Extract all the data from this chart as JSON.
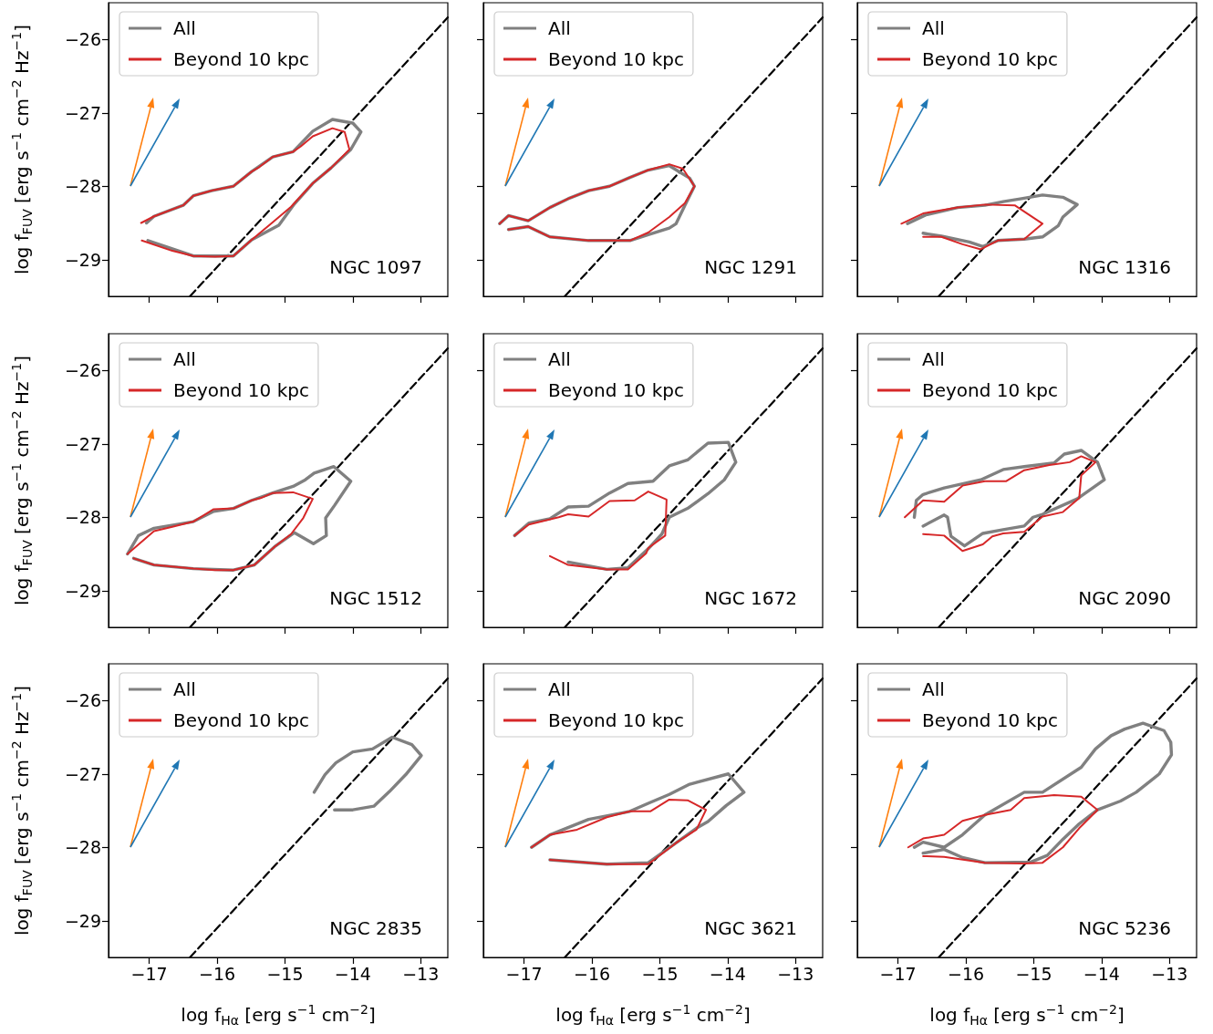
{
  "chart_data": [
    {
      "type": "line",
      "xlim": [
        -17.6,
        -12.6
      ],
      "ylim": [
        -29.5,
        -25.5
      ],
      "xticks": [
        -17,
        -16,
        -15,
        -14,
        -13
      ],
      "yticks": [
        -29,
        -28,
        -27,
        -26
      ],
      "tick_labels": "y",
      "ylabel": "log f$_{FUV}$ [erg s$^{−1}$ cm$^{−2}$ Hz$^{−1}$]",
      "legend": "top left",
      "annotations": [
        "NGC 1097"
      ],
      "series": [
        {
          "name": "All",
          "color": "#808080",
          "x": [
            -17.04,
            -16.93,
            -16.5,
            -16.35,
            -16.08,
            -15.76,
            -15.49,
            -15.18,
            -14.88,
            -14.59,
            -14.3,
            -14.0,
            -13.88,
            -14.03,
            -14.32,
            -14.59,
            -14.86,
            -15.09,
            -15.49,
            -15.76,
            -16.35,
            -17.02
          ],
          "values": [
            -28.5,
            -28.41,
            -28.26,
            -28.13,
            -28.06,
            -28.0,
            -27.8,
            -27.6,
            -27.53,
            -27.25,
            -27.09,
            -27.14,
            -27.26,
            -27.5,
            -27.75,
            -27.96,
            -28.24,
            -28.53,
            -28.73,
            -28.95,
            -28.95,
            -28.74
          ]
        },
        {
          "name": "Beyond 10 kpc",
          "color": "#d62728",
          "x": [
            -17.12,
            -16.93,
            -16.5,
            -16.35,
            -16.08,
            -15.76,
            -15.49,
            -15.38,
            -15.18,
            -14.88,
            -14.77,
            -14.59,
            -14.3,
            -14.12,
            -14.05,
            -14.32,
            -14.59,
            -14.91,
            -15.18,
            -15.49,
            -15.76,
            -16.03,
            -16.35,
            -16.66,
            -17.11
          ],
          "values": [
            -28.5,
            -28.41,
            -28.26,
            -28.13,
            -28.06,
            -28.0,
            -27.8,
            -27.74,
            -27.6,
            -27.53,
            -27.46,
            -27.32,
            -27.21,
            -27.26,
            -27.5,
            -27.75,
            -27.96,
            -28.28,
            -28.49,
            -28.73,
            -28.95,
            -28.96,
            -28.95,
            -28.88,
            -28.74
          ]
        },
        {
          "color": "#000000",
          "line_style": "dashed",
          "x": [
            -16.4,
            -12.6
          ],
          "values": [
            -29.5,
            -25.7
          ]
        }
      ]
    },
    {
      "type": "line",
      "xlim": [
        -17.6,
        -12.6
      ],
      "ylim": [
        -29.5,
        -25.5
      ],
      "xticks": [
        -17,
        -16,
        -15,
        -14,
        -13
      ],
      "yticks": [
        -29,
        -28,
        -27,
        -26
      ],
      "tick_labels": false,
      "legend": "top left",
      "annotations": [
        "NGC 1291"
      ],
      "series": [
        {
          "name": "All",
          "color": "#808080",
          "x": [
            -17.36,
            -17.23,
            -16.94,
            -16.62,
            -16.35,
            -16.05,
            -15.74,
            -15.44,
            -15.17,
            -14.86,
            -14.56,
            -14.49,
            -14.63,
            -14.76,
            -14.86,
            -15.17,
            -15.44,
            -16.05,
            -16.62,
            -16.94,
            -17.23
          ],
          "values": [
            -28.51,
            -28.4,
            -28.47,
            -28.29,
            -28.17,
            -28.06,
            -28.0,
            -27.88,
            -27.78,
            -27.72,
            -27.89,
            -28.0,
            -28.26,
            -28.51,
            -28.57,
            -28.66,
            -28.74,
            -28.74,
            -28.69,
            -28.55,
            -28.59
          ]
        },
        {
          "name": "Beyond 10 kpc",
          "color": "#d62728",
          "x": [
            -17.36,
            -17.23,
            -16.94,
            -16.62,
            -16.35,
            -16.05,
            -15.74,
            -15.44,
            -15.17,
            -14.86,
            -14.66,
            -14.49,
            -14.63,
            -14.86,
            -15.17,
            -15.44,
            -16.05,
            -16.62,
            -16.94,
            -17.23
          ],
          "values": [
            -28.51,
            -28.4,
            -28.47,
            -28.29,
            -28.17,
            -28.06,
            -28.0,
            -27.88,
            -27.78,
            -27.7,
            -27.76,
            -28.0,
            -28.23,
            -28.42,
            -28.63,
            -28.74,
            -28.74,
            -28.69,
            -28.55,
            -28.59
          ]
        },
        {
          "color": "#000000",
          "line_style": "dashed",
          "x": [
            -16.4,
            -12.6
          ],
          "values": [
            -29.5,
            -25.7
          ]
        }
      ]
    },
    {
      "type": "line",
      "xlim": [
        -17.6,
        -12.6
      ],
      "ylim": [
        -29.5,
        -25.5
      ],
      "xticks": [
        -17,
        -16,
        -15,
        -14,
        -13
      ],
      "yticks": [
        -29,
        -28,
        -27,
        -26
      ],
      "tick_labels": false,
      "legend": "top left",
      "annotations": [
        "NGC 1316"
      ],
      "series": [
        {
          "name": "All",
          "color": "#808080",
          "x": [
            -16.86,
            -16.59,
            -16.12,
            -15.72,
            -15.45,
            -15.18,
            -14.87,
            -14.57,
            -14.36,
            -14.57,
            -14.64,
            -14.87,
            -15.14,
            -15.53,
            -15.75,
            -15.95,
            -16.36,
            -16.63
          ],
          "values": [
            -28.51,
            -28.39,
            -28.29,
            -28.26,
            -28.21,
            -28.17,
            -28.12,
            -28.15,
            -28.25,
            -28.42,
            -28.54,
            -28.69,
            -28.72,
            -28.74,
            -28.82,
            -28.76,
            -28.68,
            -28.64
          ]
        },
        {
          "name": "Beyond 10 kpc",
          "color": "#d62728",
          "x": [
            -16.95,
            -16.63,
            -16.12,
            -15.72,
            -15.28,
            -14.87,
            -15.14,
            -15.53,
            -15.78,
            -16.05,
            -16.36,
            -16.63
          ],
          "values": [
            -28.51,
            -28.37,
            -28.29,
            -28.25,
            -28.26,
            -28.51,
            -28.72,
            -28.74,
            -28.86,
            -28.79,
            -28.69,
            -28.69
          ]
        },
        {
          "color": "#000000",
          "line_style": "dashed",
          "x": [
            -16.4,
            -12.6
          ],
          "values": [
            -29.5,
            -25.7
          ]
        }
      ]
    },
    {
      "type": "line",
      "xlim": [
        -17.6,
        -12.6
      ],
      "ylim": [
        -29.5,
        -25.5
      ],
      "xticks": [
        -17,
        -16,
        -15,
        -14,
        -13
      ],
      "yticks": [
        -29,
        -28,
        -27,
        -26
      ],
      "tick_labels": "y",
      "ylabel": "log f$_{FUV}$ [erg s$^{−1}$ cm$^{−2}$ Hz$^{−1}$]",
      "legend": "top left",
      "annotations": [
        "NGC 1512"
      ],
      "series": [
        {
          "name": "All",
          "color": "#808080",
          "x": [
            -17.32,
            -17.16,
            -16.93,
            -16.35,
            -16.05,
            -15.76,
            -15.49,
            -15.18,
            -14.88,
            -14.7,
            -14.57,
            -14.28,
            -14.03,
            -14.27,
            -14.4,
            -14.39,
            -14.58,
            -14.86,
            -15.15,
            -15.45,
            -15.76,
            -16.35,
            -16.93,
            -17.23
          ],
          "values": [
            -28.5,
            -28.25,
            -28.15,
            -28.06,
            -27.92,
            -27.88,
            -27.77,
            -27.67,
            -27.58,
            -27.49,
            -27.4,
            -27.31,
            -27.51,
            -27.84,
            -28.01,
            -28.25,
            -28.36,
            -28.21,
            -28.4,
            -28.65,
            -28.72,
            -28.7,
            -28.65,
            -28.56
          ]
        },
        {
          "name": "Beyond 10 kpc",
          "color": "#d62728",
          "x": [
            -17.32,
            -16.93,
            -16.66,
            -16.35,
            -16.05,
            -15.76,
            -15.49,
            -15.36,
            -15.18,
            -14.88,
            -14.59,
            -14.73,
            -14.91,
            -15.15,
            -15.45,
            -15.76,
            -16.03,
            -16.35,
            -16.93,
            -17.23
          ],
          "values": [
            -28.5,
            -28.19,
            -28.13,
            -28.06,
            -27.89,
            -27.88,
            -27.77,
            -27.74,
            -27.67,
            -27.66,
            -27.75,
            -28.01,
            -28.23,
            -28.4,
            -28.65,
            -28.72,
            -28.72,
            -28.7,
            -28.65,
            -28.56
          ]
        },
        {
          "color": "#000000",
          "line_style": "dashed",
          "x": [
            -16.4,
            -12.6
          ],
          "values": [
            -29.5,
            -25.7
          ]
        }
      ]
    },
    {
      "type": "line",
      "xlim": [
        -17.6,
        -12.6
      ],
      "ylim": [
        -29.5,
        -25.5
      ],
      "xticks": [
        -17,
        -16,
        -15,
        -14,
        -13
      ],
      "yticks": [
        -29,
        -28,
        -27,
        -26
      ],
      "tick_labels": false,
      "legend": "top left",
      "annotations": [
        "NGC 1672"
      ],
      "series": [
        {
          "name": "All",
          "color": "#808080",
          "x": [
            -17.14,
            -16.93,
            -16.62,
            -16.35,
            -16.05,
            -15.74,
            -15.47,
            -15.1,
            -14.86,
            -14.59,
            -14.29,
            -13.99,
            -13.88,
            -14.05,
            -14.29,
            -14.59,
            -14.86,
            -14.97,
            -15.17,
            -15.47,
            -15.78,
            -16.35
          ],
          "values": [
            -28.25,
            -28.08,
            -28.02,
            -27.86,
            -27.85,
            -27.67,
            -27.54,
            -27.51,
            -27.3,
            -27.22,
            -26.99,
            -26.98,
            -27.25,
            -27.49,
            -27.68,
            -27.88,
            -28.0,
            -28.23,
            -28.43,
            -28.69,
            -28.71,
            -28.61
          ]
        },
        {
          "name": "Beyond 10 kpc",
          "color": "#d62728",
          "x": [
            -17.14,
            -16.93,
            -16.49,
            -16.35,
            -16.05,
            -15.74,
            -15.37,
            -15.17,
            -14.9,
            -14.92,
            -15.17,
            -15.2,
            -15.47,
            -15.78,
            -16.35,
            -16.62
          ],
          "values": [
            -28.25,
            -28.1,
            -28.0,
            -27.96,
            -27.99,
            -27.78,
            -27.77,
            -27.65,
            -27.76,
            -28.25,
            -28.42,
            -28.49,
            -28.71,
            -28.71,
            -28.65,
            -28.53
          ]
        },
        {
          "color": "#000000",
          "line_style": "dashed",
          "x": [
            -16.4,
            -12.6
          ],
          "values": [
            -29.5,
            -25.7
          ]
        }
      ]
    },
    {
      "type": "line",
      "xlim": [
        -17.6,
        -12.6
      ],
      "ylim": [
        -29.5,
        -25.5
      ],
      "xticks": [
        -17,
        -16,
        -15,
        -14,
        -13
      ],
      "yticks": [
        -29,
        -28,
        -27,
        -26
      ],
      "tick_labels": false,
      "legend": "top left",
      "annotations": [
        "NGC 2090"
      ],
      "series": [
        {
          "name": "All",
          "color": "#808080",
          "x": [
            -16.76,
            -16.73,
            -16.63,
            -16.32,
            -15.78,
            -15.45,
            -15.14,
            -14.7,
            -14.55,
            -14.3,
            -14.06,
            -13.96,
            -14.36,
            -14.87,
            -15.01,
            -15.14,
            -15.45,
            -15.75,
            -16.02,
            -16.22,
            -16.27,
            -16.32,
            -16.63
          ],
          "values": [
            -28.0,
            -27.77,
            -27.69,
            -27.6,
            -27.49,
            -27.35,
            -27.31,
            -27.26,
            -27.14,
            -27.09,
            -27.25,
            -27.49,
            -27.75,
            -27.96,
            -28.0,
            -28.12,
            -28.17,
            -28.22,
            -28.39,
            -28.26,
            -28.0,
            -27.97,
            -28.12
          ]
        },
        {
          "name": "Beyond 10 kpc",
          "color": "#d62728",
          "x": [
            -16.9,
            -16.63,
            -16.32,
            -16.05,
            -15.72,
            -15.41,
            -15.14,
            -14.77,
            -14.47,
            -14.3,
            -14.09,
            -14.3,
            -14.33,
            -14.57,
            -14.87,
            -15.14,
            -15.45,
            -15.61,
            -15.75,
            -16.05,
            -16.32,
            -16.63
          ],
          "values": [
            -28.0,
            -27.77,
            -27.79,
            -27.57,
            -27.51,
            -27.51,
            -27.36,
            -27.29,
            -27.25,
            -27.17,
            -27.25,
            -27.43,
            -27.74,
            -27.93,
            -27.99,
            -28.2,
            -28.22,
            -28.26,
            -28.37,
            -28.46,
            -28.25,
            -28.23
          ]
        },
        {
          "color": "#000000",
          "line_style": "dashed",
          "x": [
            -16.4,
            -12.6
          ],
          "values": [
            -29.5,
            -25.7
          ]
        }
      ]
    },
    {
      "type": "line",
      "xlim": [
        -17.6,
        -12.6
      ],
      "ylim": [
        -29.5,
        -25.5
      ],
      "xticks": [
        -17,
        -16,
        -15,
        -14,
        -13
      ],
      "yticks": [
        -29,
        -28,
        -27,
        -26
      ],
      "xlabel": "log f$_{Hα}$ [erg s$^{−1}$ cm$^{−2}$]",
      "ylabel": "log f$_{FUV}$ [erg s$^{−1}$ cm$^{−2}$ Hz$^{−1}$]",
      "legend": "top left",
      "annotations": [
        "NGC 2835"
      ],
      "series": [
        {
          "name": "All",
          "color": "#808080",
          "x": [
            -14.57,
            -14.41,
            -14.25,
            -14.0,
            -13.71,
            -13.42,
            -13.13,
            -12.99,
            -13.22,
            -13.46,
            -13.69,
            -14.0,
            -14.27
          ],
          "values": [
            -27.25,
            -27.01,
            -26.85,
            -26.7,
            -26.66,
            -26.5,
            -26.6,
            -26.75,
            -27.01,
            -27.24,
            -27.44,
            -27.49,
            -27.49
          ]
        },
        {
          "name": "Beyond 10 kpc",
          "color": "#d62728"
        },
        {
          "color": "#000000",
          "line_style": "dashed",
          "x": [
            -16.4,
            -12.6
          ],
          "values": [
            -29.5,
            -25.7
          ]
        }
      ]
    },
    {
      "type": "line",
      "xlim": [
        -17.6,
        -12.6
      ],
      "ylim": [
        -29.5,
        -25.5
      ],
      "xticks": [
        -17,
        -16,
        -15,
        -14,
        -13
      ],
      "yticks": [
        -29,
        -28,
        -27,
        -26
      ],
      "tick_labels": "x",
      "xlabel": "log f$_{Hα}$ [erg s$^{−1}$ cm$^{−2}$]",
      "legend": "top left",
      "annotations": [
        "NGC 3621"
      ],
      "series": [
        {
          "name": "All",
          "color": "#808080",
          "x": [
            -16.89,
            -16.62,
            -16.05,
            -15.44,
            -15.17,
            -14.86,
            -14.56,
            -13.99,
            -13.76,
            -14.02,
            -14.29,
            -14.46,
            -14.76,
            -15.17,
            -15.78,
            -16.62
          ],
          "values": [
            -28.0,
            -27.83,
            -27.62,
            -27.51,
            -27.4,
            -27.28,
            -27.14,
            -27.0,
            -27.25,
            -27.43,
            -27.65,
            -27.74,
            -27.94,
            -28.21,
            -28.23,
            -28.17
          ]
        },
        {
          "name": "Beyond 10 kpc",
          "color": "#d62728",
          "x": [
            -16.89,
            -16.62,
            -16.22,
            -15.78,
            -15.44,
            -15.14,
            -14.86,
            -14.59,
            -14.32,
            -14.46,
            -14.76,
            -15.17,
            -15.78,
            -16.62
          ],
          "values": [
            -28.0,
            -27.83,
            -27.76,
            -27.59,
            -27.51,
            -27.51,
            -27.35,
            -27.36,
            -27.49,
            -27.76,
            -27.94,
            -28.23,
            -28.23,
            -28.17
          ]
        },
        {
          "color": "#000000",
          "line_style": "dashed",
          "x": [
            -16.4,
            -12.6
          ],
          "values": [
            -29.5,
            -25.7
          ]
        }
      ]
    },
    {
      "type": "line",
      "xlim": [
        -17.6,
        -12.6
      ],
      "ylim": [
        -29.5,
        -25.5
      ],
      "xticks": [
        -17,
        -16,
        -15,
        -14,
        -13
      ],
      "yticks": [
        -29,
        -28,
        -27,
        -26
      ],
      "tick_labels": "x",
      "xlabel": "log f$_{Hα}$ [erg s$^{−1}$ cm$^{−2}$]",
      "legend": "top left",
      "annotations": [
        "NGC 5236"
      ],
      "series": [
        {
          "name": "All",
          "color": "#808080",
          "x": [
            -16.76,
            -16.63,
            -16.32,
            -16.05,
            -15.72,
            -15.14,
            -14.87,
            -14.3,
            -14.09,
            -13.86,
            -13.66,
            -13.39,
            -13.08,
            -12.98,
            -12.97,
            -13.15,
            -13.49,
            -13.72,
            -14.06,
            -14.33,
            -14.57,
            -14.8,
            -15.04,
            -15.72,
            -16.05,
            -16.32,
            -16.63
          ],
          "values": [
            -28.0,
            -27.93,
            -28.0,
            -27.83,
            -27.56,
            -27.25,
            -27.25,
            -26.91,
            -26.66,
            -26.48,
            -26.39,
            -26.31,
            -26.41,
            -26.57,
            -26.74,
            -27.0,
            -27.25,
            -27.37,
            -27.49,
            -27.68,
            -27.89,
            -28.11,
            -28.2,
            -28.21,
            -28.14,
            -28.03,
            -28.08
          ]
        },
        {
          "name": "Beyond 10 kpc",
          "color": "#d62728",
          "x": [
            -16.85,
            -16.63,
            -16.32,
            -16.05,
            -15.72,
            -15.34,
            -15.14,
            -14.7,
            -14.3,
            -14.06,
            -14.33,
            -14.57,
            -14.87,
            -15.14,
            -15.72,
            -16.32,
            -16.63
          ],
          "values": [
            -28.0,
            -27.88,
            -27.83,
            -27.64,
            -27.56,
            -27.49,
            -27.33,
            -27.29,
            -27.31,
            -27.49,
            -27.74,
            -28.0,
            -28.21,
            -28.22,
            -28.21,
            -28.13,
            -28.12
          ]
        },
        {
          "color": "#000000",
          "line_style": "dashed",
          "x": [
            -16.4,
            -12.6
          ],
          "values": [
            -29.5,
            -25.7
          ]
        }
      ]
    }
  ]
}
